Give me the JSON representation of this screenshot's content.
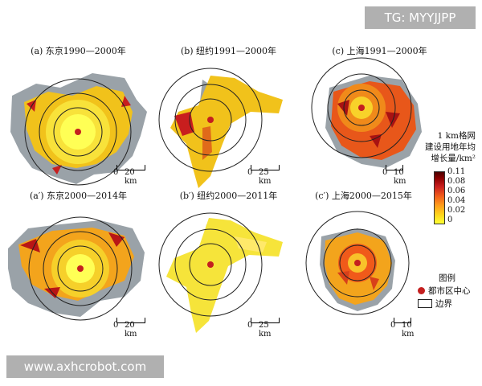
{
  "watermarks": {
    "top": "TG: MYYJJPP",
    "bottom": "www.axhcrobot.com"
  },
  "panels": [
    {
      "id": "a",
      "title": "(a) 东京1990—2000年",
      "scale_zero": "0",
      "scale_label": "20 km"
    },
    {
      "id": "b",
      "title": "(b) 纽约1991—2000年",
      "scale_zero": "0",
      "scale_label": "25 km"
    },
    {
      "id": "c",
      "title": "(c) 上海1991—2000年",
      "scale_zero": "0",
      "scale_label": "10 km"
    },
    {
      "id": "a2",
      "title": "(a′) 东京2000—2014年",
      "scale_zero": "0",
      "scale_label": "20 km"
    },
    {
      "id": "b2",
      "title": "(b′) 纽约2000—2011年",
      "scale_zero": "0",
      "scale_label": "25 km"
    },
    {
      "id": "c2",
      "title": "(c′) 上海2000—2015年",
      "scale_zero": "0",
      "scale_label": "10 km"
    }
  ],
  "colorbar": {
    "title_lines": [
      "1 km格网",
      "建设用地年均",
      "增长量/km²"
    ],
    "ticks": [
      "0.11",
      "0.08",
      "0.06",
      "0.04",
      "0.02",
      "0"
    ],
    "colors": {
      "low": "#ffff33",
      "high": "#4a0000"
    }
  },
  "legend": {
    "title": "图例",
    "center_label": "都市区中心",
    "boundary_label": "边界",
    "center_color": "#c41f1f"
  },
  "colors": {
    "land_gray": "#9aa2a8",
    "ring": "#222222"
  }
}
